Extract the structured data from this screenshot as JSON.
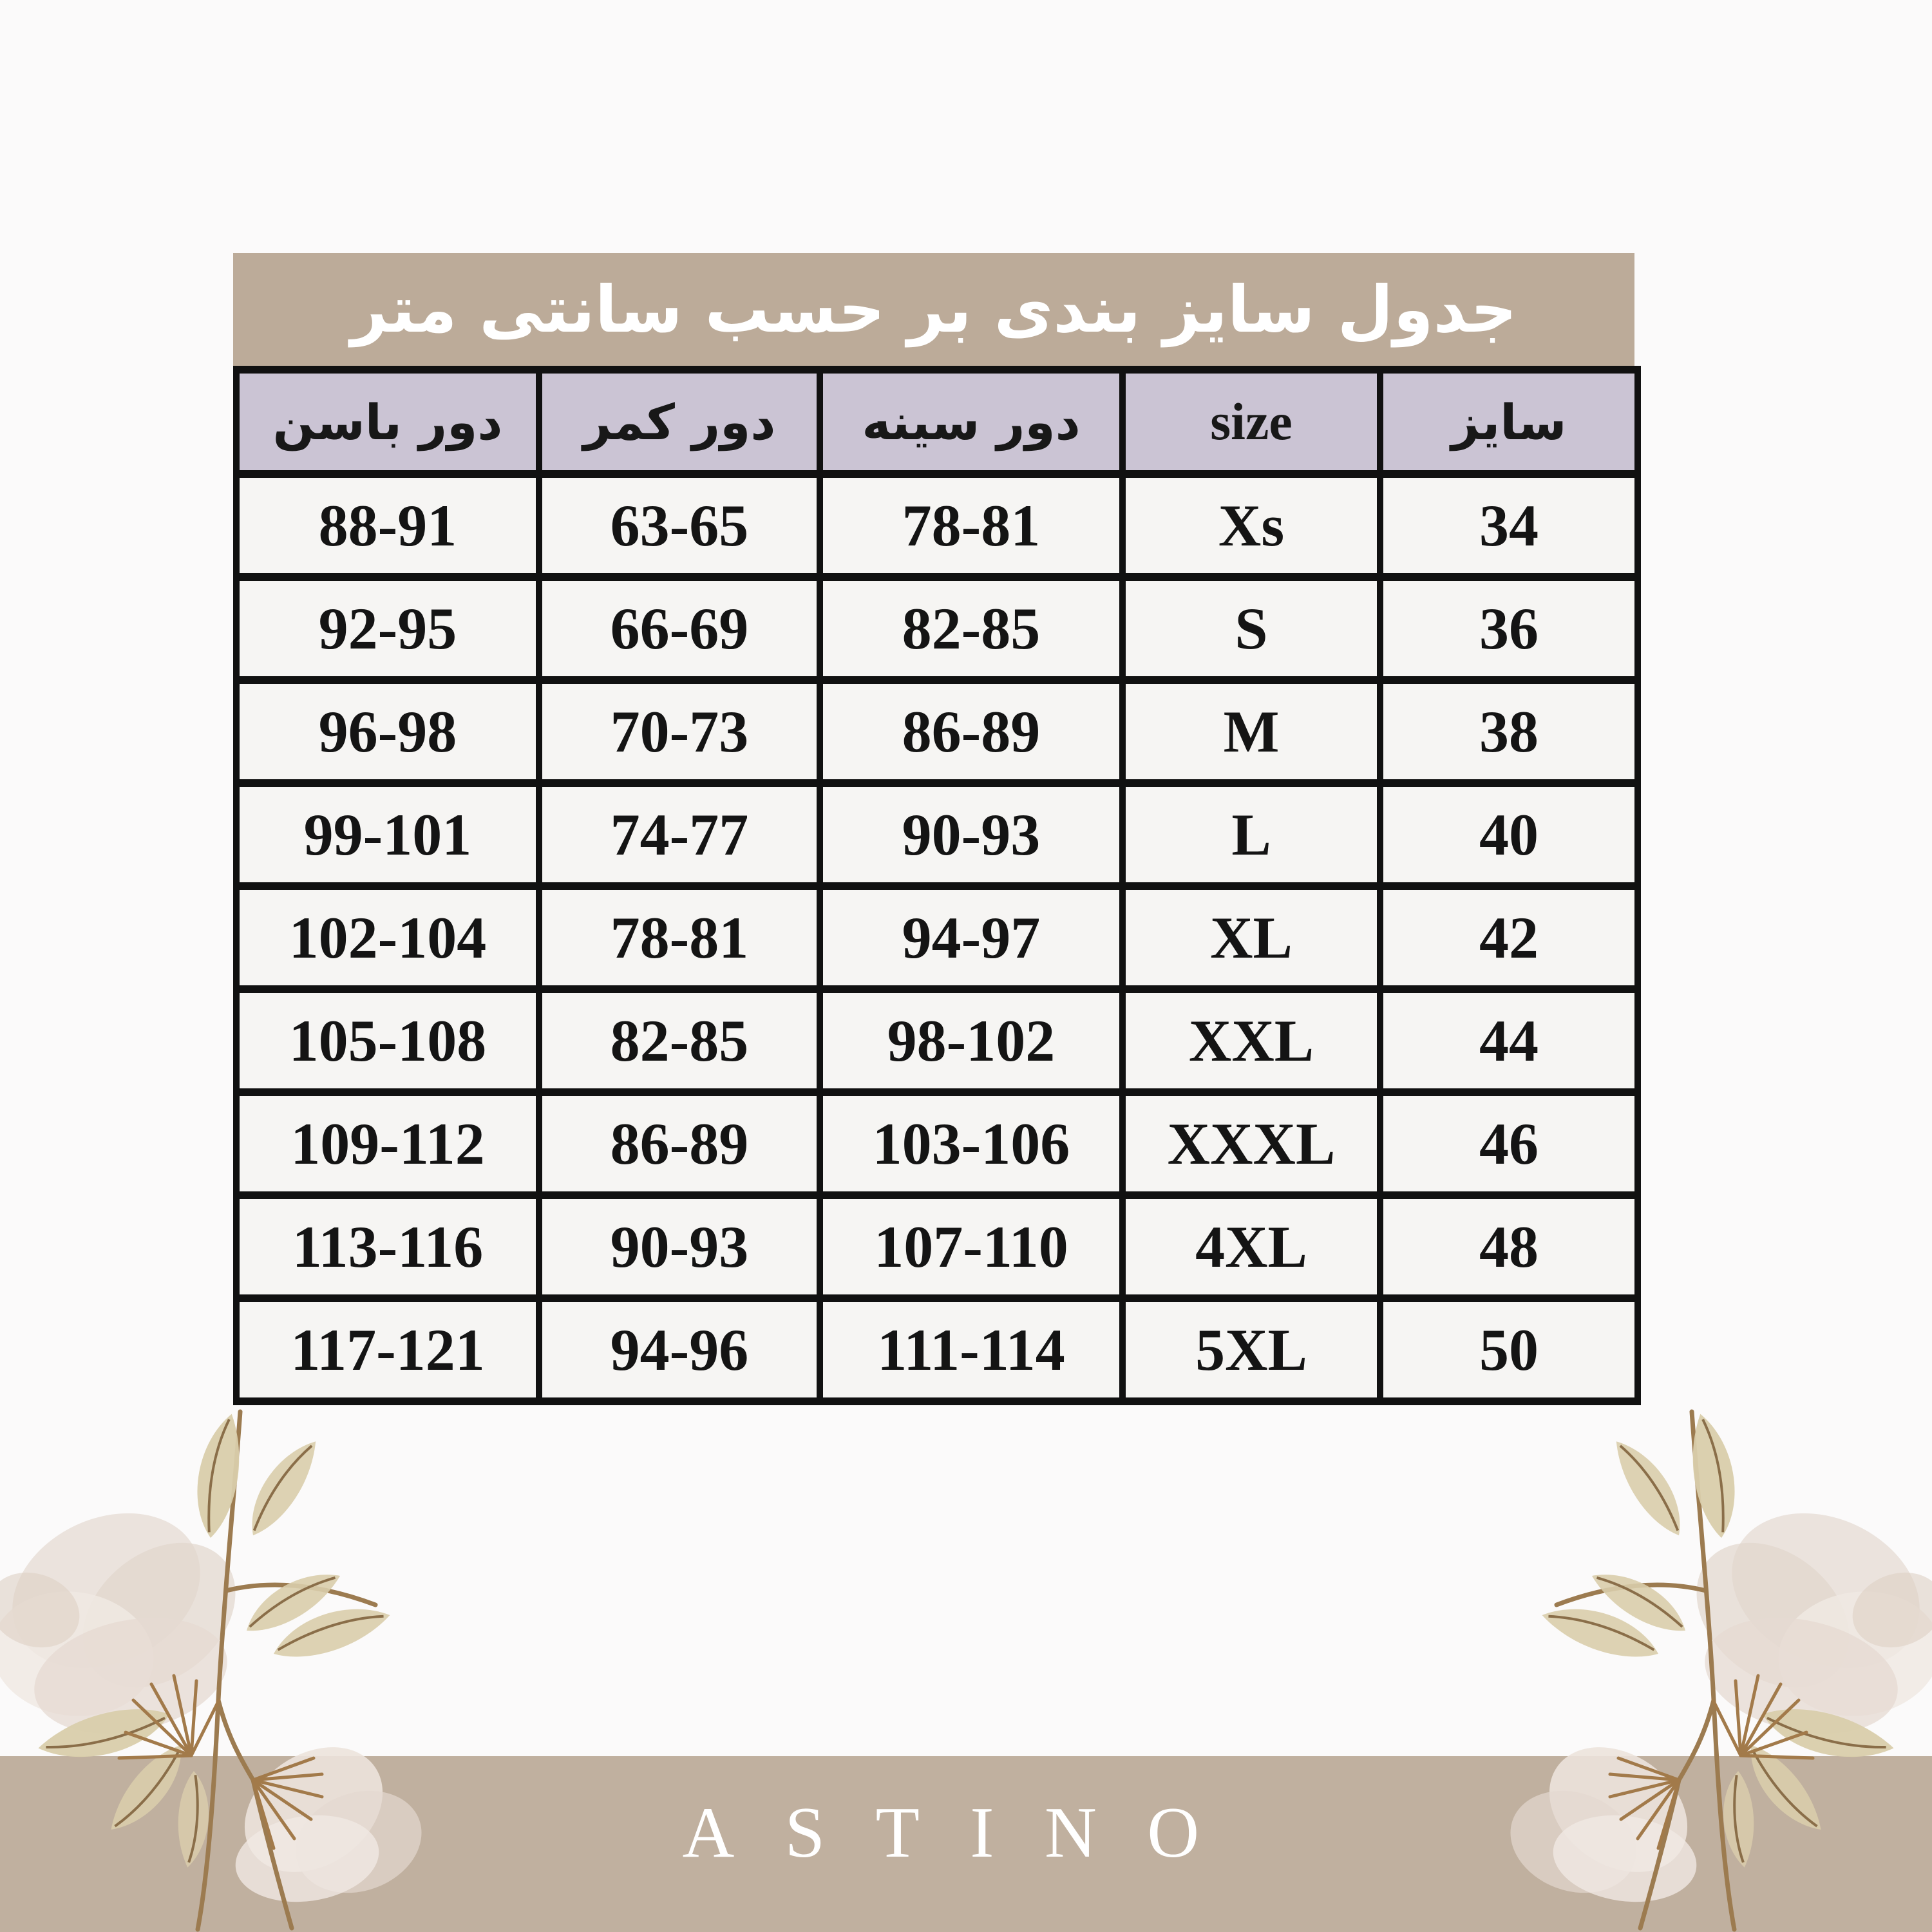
{
  "title": {
    "text": "جدول سایز بندی بر حسب سانتی متر"
  },
  "brand": {
    "text": "ASTINO"
  },
  "table": {
    "columns": [
      {
        "key": "hips",
        "label": "دور باسن",
        "lang": "fa"
      },
      {
        "key": "waist",
        "label": "دور کمر",
        "lang": "fa"
      },
      {
        "key": "chest",
        "label": "دور سینه",
        "lang": "fa"
      },
      {
        "key": "size_en",
        "label": "size",
        "lang": "en"
      },
      {
        "key": "size_fa",
        "label": "سایز",
        "lang": "fa"
      }
    ],
    "rows": [
      [
        "88-91",
        "63-65",
        "78-81",
        "Xs",
        "34"
      ],
      [
        "92-95",
        "66-69",
        "82-85",
        "S",
        "36"
      ],
      [
        "96-98",
        "70-73",
        "86-89",
        "M",
        "38"
      ],
      [
        "99-101",
        "74-77",
        "90-93",
        "L",
        "40"
      ],
      [
        "102-104",
        "78-81",
        "94-97",
        "XL",
        "42"
      ],
      [
        "105-108",
        "82-85",
        "98-102",
        "XXL",
        "44"
      ],
      [
        "109-112",
        "86-89",
        "103-106",
        "XXXL",
        "46"
      ],
      [
        "113-116",
        "90-93",
        "107-110",
        "4XL",
        "48"
      ],
      [
        "117-121",
        "94-96",
        "111-114",
        "5XL",
        "50"
      ]
    ]
  },
  "colors": {
    "page_background": "#fbfafa",
    "title_bar": "#bcab99",
    "header_row": "#cbc4d4",
    "cell_background": "#f6f5f3",
    "table_border": "#111111",
    "footer_band": "#c0b09f",
    "brand_text": "#ffffff",
    "petal": "#e8dfd8",
    "leaf": "#d9cdab",
    "stem": "#9c7b50"
  }
}
